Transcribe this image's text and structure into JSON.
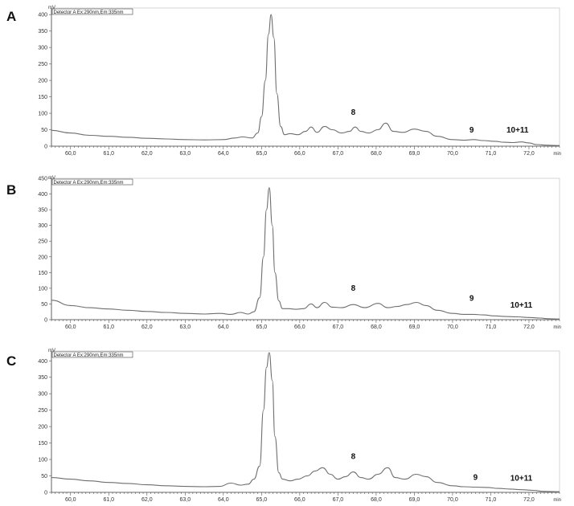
{
  "chart_data": [
    {
      "type": "line",
      "panel_label": "A",
      "legend": "Detector A Ex:290nm,Em:335nm",
      "ylabel": "mV",
      "xlabel": "min",
      "xlim": [
        59.5,
        72.8
      ],
      "ylim": [
        0,
        420
      ],
      "x_ticks": [
        "60,0",
        "61,0",
        "62,0",
        "63,0",
        "64,0",
        "65,0",
        "66,0",
        "67,0",
        "68,0",
        "69,0",
        "70,0",
        "71,0",
        "72,0"
      ],
      "y_ticks": [
        "0",
        "50",
        "100",
        "150",
        "200",
        "250",
        "300",
        "350",
        "400"
      ],
      "x_tick_values": [
        60,
        61,
        62,
        63,
        64,
        65,
        66,
        67,
        68,
        69,
        70,
        71,
        72
      ],
      "y_tick_values": [
        0,
        50,
        100,
        150,
        200,
        250,
        300,
        350,
        400
      ],
      "series": [
        {
          "x": [
            59.5,
            60.0,
            60.5,
            61.0,
            61.5,
            62.0,
            62.5,
            63.0,
            63.5,
            64.0,
            64.3,
            64.5,
            64.75,
            64.9,
            65.0,
            65.1,
            65.18,
            65.25,
            65.32,
            65.4,
            65.5,
            65.6,
            65.75,
            65.95,
            66.15,
            66.3,
            66.45,
            66.65,
            66.85,
            67.1,
            67.3,
            67.45,
            67.6,
            67.8,
            68.05,
            68.25,
            68.45,
            68.7,
            69.0,
            69.3,
            69.6,
            70.0,
            70.3,
            70.55,
            70.8,
            71.1,
            71.35,
            71.6,
            71.8,
            72.0,
            72.2,
            72.5,
            72.8
          ],
          "y": [
            48,
            40,
            33,
            30,
            27,
            24,
            22,
            20,
            19,
            20,
            25,
            28,
            25,
            40,
            90,
            200,
            340,
            400,
            330,
            160,
            60,
            35,
            38,
            35,
            45,
            58,
            42,
            60,
            50,
            40,
            45,
            58,
            45,
            40,
            50,
            70,
            45,
            42,
            52,
            45,
            30,
            20,
            18,
            20,
            17,
            15,
            12,
            11,
            13,
            10,
            5,
            3,
            2
          ]
        }
      ],
      "annotations": [
        {
          "text": "8",
          "x": 67.4,
          "y": 95
        },
        {
          "text": "9",
          "x": 70.5,
          "y": 42
        },
        {
          "text": "10+11",
          "x": 71.7,
          "y": 42
        }
      ]
    },
    {
      "type": "line",
      "panel_label": "B",
      "legend": "Detector A Ex:290nm,Em:335nm",
      "ylabel": "mV",
      "xlabel": "min",
      "xlim": [
        59.5,
        72.8
      ],
      "ylim": [
        0,
        450
      ],
      "x_ticks": [
        "60,0",
        "61,0",
        "62,0",
        "63,0",
        "64,0",
        "65,0",
        "66,0",
        "67,0",
        "68,0",
        "69,0",
        "70,0",
        "71,0",
        "72,0"
      ],
      "y_ticks": [
        "0",
        "50",
        "100",
        "150",
        "200",
        "250",
        "300",
        "350",
        "400",
        "450"
      ],
      "x_tick_values": [
        60,
        61,
        62,
        63,
        64,
        65,
        66,
        67,
        68,
        69,
        70,
        71,
        72
      ],
      "y_tick_values": [
        0,
        50,
        100,
        150,
        200,
        250,
        300,
        350,
        400,
        450
      ],
      "series": [
        {
          "x": [
            59.5,
            60.0,
            60.5,
            61.0,
            61.5,
            62.0,
            62.5,
            63.0,
            63.5,
            63.9,
            64.2,
            64.45,
            64.65,
            64.8,
            64.95,
            65.05,
            65.13,
            65.2,
            65.28,
            65.35,
            65.45,
            65.55,
            65.7,
            65.9,
            66.1,
            66.3,
            66.45,
            66.65,
            66.85,
            67.1,
            67.4,
            67.7,
            68.05,
            68.3,
            68.55,
            68.8,
            69.05,
            69.3,
            69.6,
            70.0,
            70.3,
            70.55,
            70.8,
            71.1,
            71.4,
            71.7,
            72.0,
            72.3,
            72.5,
            72.8
          ],
          "y": [
            62,
            45,
            38,
            34,
            30,
            26,
            23,
            20,
            18,
            20,
            17,
            23,
            18,
            25,
            70,
            200,
            350,
            420,
            300,
            150,
            60,
            35,
            35,
            33,
            35,
            50,
            38,
            55,
            40,
            38,
            48,
            38,
            52,
            38,
            42,
            48,
            55,
            45,
            30,
            20,
            17,
            17,
            15,
            12,
            10,
            9,
            7,
            5,
            3,
            2
          ]
        }
      ],
      "annotations": [
        {
          "text": "8",
          "x": 67.4,
          "y": 92
        },
        {
          "text": "9",
          "x": 70.5,
          "y": 60
        },
        {
          "text": "10+11",
          "x": 71.8,
          "y": 38
        }
      ]
    },
    {
      "type": "line",
      "panel_label": "C",
      "legend": "Detector A Ex:290nm,Em:335nm",
      "ylabel": "mV",
      "xlabel": "min",
      "xlim": [
        59.5,
        72.8
      ],
      "ylim": [
        0,
        430
      ],
      "x_ticks": [
        "60,0",
        "61,0",
        "62,0",
        "63,0",
        "64,0",
        "65,0",
        "66,0",
        "67,0",
        "68,0",
        "69,0",
        "70,0",
        "71,0",
        "72,0"
      ],
      "y_ticks": [
        "0",
        "50",
        "100",
        "150",
        "200",
        "250",
        "300",
        "350",
        "400"
      ],
      "x_tick_values": [
        60,
        61,
        62,
        63,
        64,
        65,
        66,
        67,
        68,
        69,
        70,
        71,
        72
      ],
      "y_tick_values": [
        0,
        50,
        100,
        150,
        200,
        250,
        300,
        350,
        400
      ],
      "series": [
        {
          "x": [
            59.5,
            60.0,
            60.5,
            61.0,
            61.5,
            62.0,
            62.5,
            63.0,
            63.5,
            63.9,
            64.2,
            64.45,
            64.65,
            64.8,
            64.95,
            65.05,
            65.13,
            65.2,
            65.28,
            65.35,
            65.45,
            65.55,
            65.75,
            65.95,
            66.2,
            66.4,
            66.6,
            66.8,
            67.0,
            67.2,
            67.4,
            67.6,
            67.8,
            68.05,
            68.3,
            68.5,
            68.75,
            69.05,
            69.3,
            69.6,
            70.0,
            70.3,
            70.6,
            70.9,
            71.2,
            71.5,
            71.8,
            72.1,
            72.4,
            72.8
          ],
          "y": [
            45,
            40,
            35,
            30,
            27,
            23,
            20,
            18,
            17,
            18,
            28,
            22,
            25,
            40,
            80,
            250,
            380,
            425,
            340,
            170,
            60,
            40,
            35,
            40,
            50,
            65,
            75,
            55,
            40,
            48,
            62,
            45,
            40,
            55,
            75,
            45,
            40,
            55,
            48,
            30,
            20,
            17,
            16,
            15,
            12,
            10,
            8,
            6,
            3,
            2
          ]
        }
      ],
      "annotations": [
        {
          "text": "8",
          "x": 67.4,
          "y": 102
        },
        {
          "text": "9",
          "x": 70.6,
          "y": 38
        },
        {
          "text": "10+11",
          "x": 71.8,
          "y": 36
        }
      ]
    }
  ]
}
